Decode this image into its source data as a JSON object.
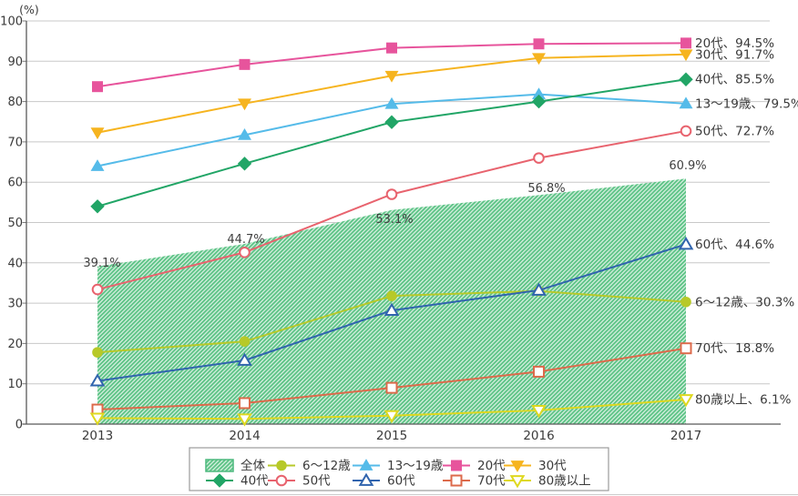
{
  "chart_data": {
    "type": "line",
    "title": "",
    "unit_label": "(%)",
    "x_labels": [
      "2013",
      "2014",
      "2015",
      "2016",
      "2017"
    ],
    "ylim": [
      0,
      100
    ],
    "ytick_step": 10,
    "ytick_labels": [
      "0",
      "10",
      "20",
      "30",
      "40",
      "50",
      "60",
      "70",
      "80",
      "90",
      "100"
    ],
    "grid": true,
    "legend_position": "bottom",
    "area_series": {
      "id": "overall",
      "name": "全体",
      "values": [
        39.1,
        44.7,
        53.1,
        56.8,
        60.9
      ],
      "point_labels": [
        "39.1%",
        "44.7%",
        "53.1%",
        "56.8%",
        "60.9%"
      ],
      "stripe_color": "#5ec487",
      "bg_color": "#eaf6ee",
      "border_color": "#4db97e"
    },
    "series": [
      {
        "id": "age-6-12",
        "name": "6～12歳",
        "values": [
          17.8,
          20.5,
          31.8,
          33.0,
          30.3
        ],
        "color": "#b7c929",
        "marker": "circle",
        "filled": true,
        "end_label": "6～12歳、30.3%"
      },
      {
        "id": "age-13-19",
        "name": "13～19歳",
        "values": [
          64.0,
          71.7,
          79.4,
          81.8,
          79.5
        ],
        "color": "#55bbe9",
        "marker": "triangle-up",
        "filled": true,
        "end_label": "13～19歳、79.5%"
      },
      {
        "id": "age-20s",
        "name": "20代",
        "values": [
          83.7,
          89.2,
          93.3,
          94.3,
          94.5
        ],
        "color": "#e7549c",
        "marker": "square",
        "filled": true,
        "end_label": "20代、94.5%"
      },
      {
        "id": "age-30s",
        "name": "30代",
        "values": [
          72.3,
          79.5,
          86.4,
          90.8,
          91.7
        ],
        "color": "#f6b41f",
        "marker": "triangle-down",
        "filled": true,
        "end_label": "30代、91.7%"
      },
      {
        "id": "age-40s",
        "name": "40代",
        "values": [
          54.0,
          64.6,
          74.9,
          80.0,
          85.5
        ],
        "color": "#21a566",
        "marker": "diamond",
        "filled": true,
        "end_label": "40代、85.5%"
      },
      {
        "id": "age-50s",
        "name": "50代",
        "values": [
          33.4,
          42.6,
          57.0,
          66.0,
          72.7
        ],
        "color": "#e8636e",
        "marker": "circle",
        "filled": false,
        "end_label": "50代、72.7%"
      },
      {
        "id": "age-60s",
        "name": "60代",
        "values": [
          10.7,
          15.8,
          28.2,
          33.2,
          44.6
        ],
        "color": "#3064ae",
        "marker": "triangle-up",
        "filled": false,
        "end_label": "60代、44.6%"
      },
      {
        "id": "age-70s",
        "name": "70代",
        "values": [
          3.6,
          5.2,
          9.0,
          13.0,
          18.8
        ],
        "color": "#dc6a4b",
        "marker": "square",
        "filled": false,
        "end_label": "70代、18.8%"
      },
      {
        "id": "age-80plus",
        "name": "80歳以上",
        "values": [
          1.5,
          1.3,
          2.1,
          3.4,
          6.1
        ],
        "color": "#ded81f",
        "marker": "triangle-down",
        "filled": false,
        "end_label": "80歳以上、6.1%"
      }
    ],
    "legend_rows": [
      [
        "全体",
        "6～12歳",
        "13～19歳",
        "20代",
        "30代"
      ],
      [
        "40代",
        "50代",
        "60代",
        "70代",
        "80歳以上"
      ]
    ]
  },
  "colors": {
    "grid": "#c8c8c8",
    "axis": "#595959",
    "tick": "#7a7a7a",
    "text": "#3a3a3a",
    "point_label_text": "#404040",
    "legend_border": "#9b9b9b",
    "bottom_rule": "#cccccc"
  }
}
